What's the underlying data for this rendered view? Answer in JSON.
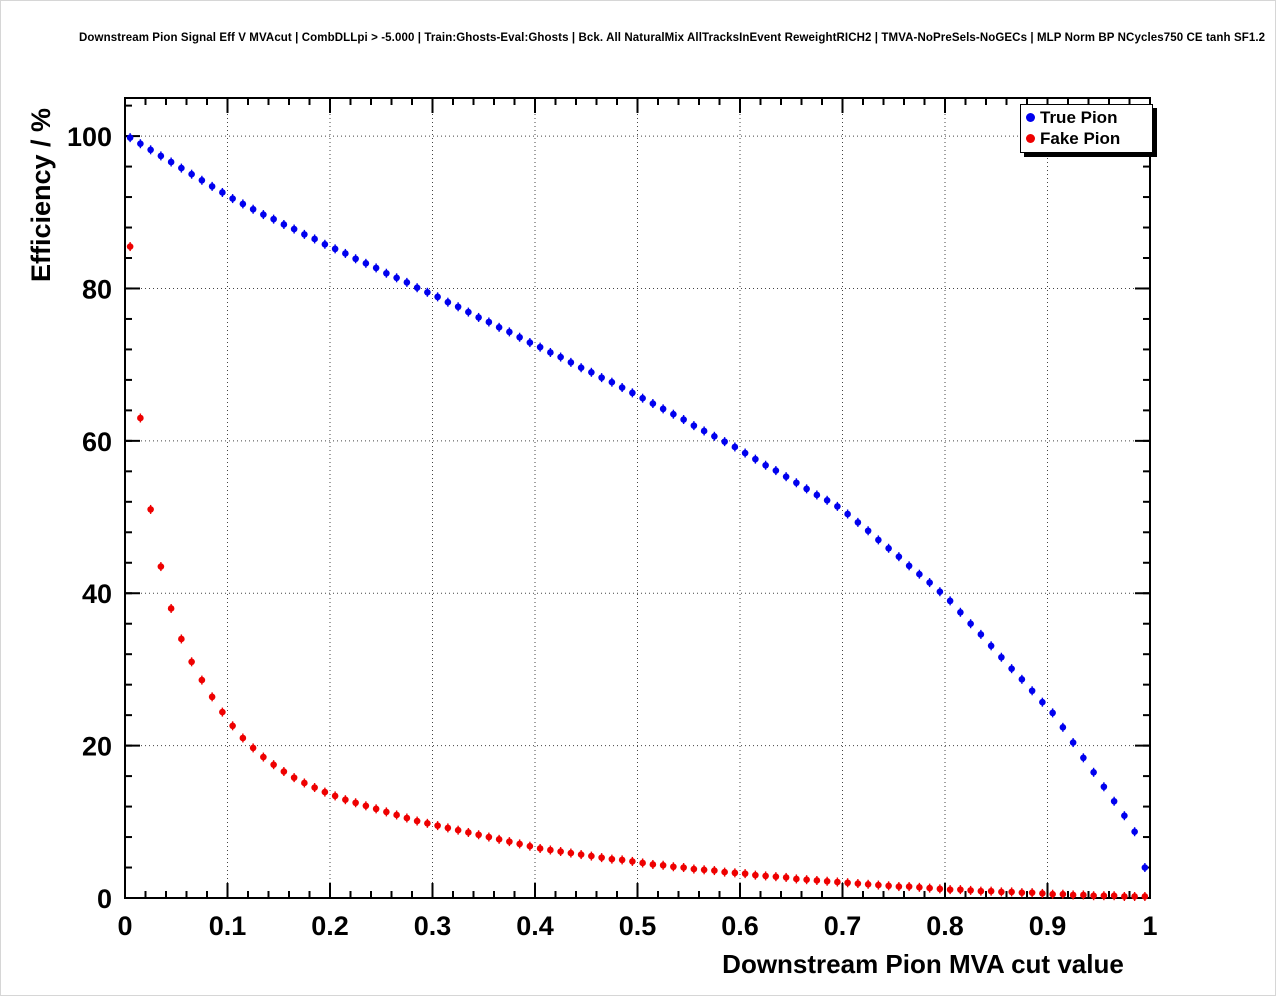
{
  "header": {
    "title": "Downstream Pion Signal Eff V MVAcut | CombDLLpi > -5.000 | Train:Ghosts-Eval:Ghosts | Bck. All NaturalMix AllTracksInEvent ReweightRICH2 | TMVA-NoPreSels-NoGECs | MLP Norm BP NCycles750 CE tanh SF1.2"
  },
  "chart_data": {
    "type": "scatter",
    "title": "Downstream Pion Signal Eff V MVAcut",
    "xlabel": "Downstream Pion MVA cut value",
    "ylabel": "Efficiency / %",
    "xlim": [
      0,
      1
    ],
    "ylim": [
      0,
      105
    ],
    "grid": true,
    "grid_style": "dotted",
    "legend_position": "top-right",
    "x_ticks": [
      0,
      0.1,
      0.2,
      0.3,
      0.4,
      0.5,
      0.6,
      0.7,
      0.8,
      0.9,
      1
    ],
    "x_tick_labels": [
      "0",
      "0.1",
      "0.2",
      "0.3",
      "0.4",
      "0.5",
      "0.6",
      "0.7",
      "0.8",
      "0.9",
      "1"
    ],
    "y_ticks": [
      0,
      20,
      40,
      60,
      80,
      100
    ],
    "y_tick_labels": [
      "0",
      "20",
      "40",
      "60",
      "80",
      "100"
    ],
    "x": [
      0.005,
      0.015,
      0.025,
      0.035,
      0.045,
      0.055,
      0.065,
      0.075,
      0.085,
      0.095,
      0.105,
      0.115,
      0.125,
      0.135,
      0.145,
      0.155,
      0.165,
      0.175,
      0.185,
      0.195,
      0.205,
      0.215,
      0.225,
      0.235,
      0.245,
      0.255,
      0.265,
      0.275,
      0.285,
      0.295,
      0.305,
      0.315,
      0.325,
      0.335,
      0.345,
      0.355,
      0.365,
      0.375,
      0.385,
      0.395,
      0.405,
      0.415,
      0.425,
      0.435,
      0.445,
      0.455,
      0.465,
      0.475,
      0.485,
      0.495,
      0.505,
      0.515,
      0.525,
      0.535,
      0.545,
      0.555,
      0.565,
      0.575,
      0.585,
      0.595,
      0.605,
      0.615,
      0.625,
      0.635,
      0.645,
      0.655,
      0.665,
      0.675,
      0.685,
      0.695,
      0.705,
      0.715,
      0.725,
      0.735,
      0.745,
      0.755,
      0.765,
      0.775,
      0.785,
      0.795,
      0.805,
      0.815,
      0.825,
      0.835,
      0.845,
      0.855,
      0.865,
      0.875,
      0.885,
      0.895,
      0.905,
      0.915,
      0.925,
      0.935,
      0.945,
      0.955,
      0.965,
      0.975,
      0.985,
      0.995
    ],
    "series": [
      {
        "name": "True Pion",
        "color": "#0000ee",
        "values": [
          99.8,
          99.0,
          98.2,
          97.4,
          96.6,
          95.8,
          95.0,
          94.2,
          93.4,
          92.6,
          91.8,
          91.1,
          90.4,
          89.7,
          89.1,
          88.4,
          87.8,
          87.1,
          86.5,
          85.8,
          85.2,
          84.6,
          83.9,
          83.3,
          82.7,
          82.0,
          81.4,
          80.8,
          80.1,
          79.5,
          78.9,
          78.2,
          77.6,
          76.9,
          76.2,
          75.6,
          74.9,
          74.3,
          73.6,
          72.9,
          72.3,
          71.6,
          71.0,
          70.3,
          69.6,
          69.0,
          68.3,
          67.7,
          67.0,
          66.3,
          65.6,
          64.9,
          64.2,
          63.5,
          62.8,
          62.0,
          61.3,
          60.6,
          59.9,
          59.2,
          58.4,
          57.6,
          56.8,
          56.1,
          55.3,
          54.5,
          53.7,
          52.9,
          52.2,
          51.4,
          50.4,
          49.3,
          48.2,
          47.0,
          45.9,
          44.8,
          43.6,
          42.5,
          41.4,
          40.2,
          39.0,
          37.5,
          36.0,
          34.6,
          33.1,
          31.6,
          30.1,
          28.7,
          27.2,
          25.7,
          24.3,
          22.4,
          20.4,
          18.4,
          16.5,
          14.6,
          12.7,
          10.8,
          8.7,
          4.0
        ]
      },
      {
        "name": "Fake Pion",
        "color": "#ee0000",
        "values": [
          85.5,
          63.0,
          51.0,
          43.5,
          38.0,
          34.0,
          31.0,
          28.6,
          26.4,
          24.4,
          22.6,
          21.0,
          19.7,
          18.5,
          17.5,
          16.6,
          15.8,
          15.1,
          14.5,
          13.9,
          13.4,
          12.9,
          12.5,
          12.1,
          11.7,
          11.3,
          10.9,
          10.5,
          10.1,
          9.8,
          9.5,
          9.2,
          8.9,
          8.6,
          8.3,
          8.0,
          7.7,
          7.4,
          7.1,
          6.8,
          6.5,
          6.3,
          6.1,
          5.9,
          5.7,
          5.5,
          5.3,
          5.1,
          5.0,
          4.8,
          4.6,
          4.4,
          4.3,
          4.1,
          4.0,
          3.8,
          3.7,
          3.6,
          3.4,
          3.3,
          3.2,
          3.0,
          2.9,
          2.8,
          2.7,
          2.5,
          2.4,
          2.3,
          2.2,
          2.1,
          2.0,
          1.9,
          1.8,
          1.7,
          1.6,
          1.5,
          1.5,
          1.4,
          1.3,
          1.2,
          1.1,
          1.1,
          1.0,
          0.9,
          0.9,
          0.8,
          0.8,
          0.7,
          0.7,
          0.6,
          0.5,
          0.5,
          0.4,
          0.4,
          0.3,
          0.3,
          0.3,
          0.2,
          0.2,
          0.2
        ]
      }
    ]
  }
}
